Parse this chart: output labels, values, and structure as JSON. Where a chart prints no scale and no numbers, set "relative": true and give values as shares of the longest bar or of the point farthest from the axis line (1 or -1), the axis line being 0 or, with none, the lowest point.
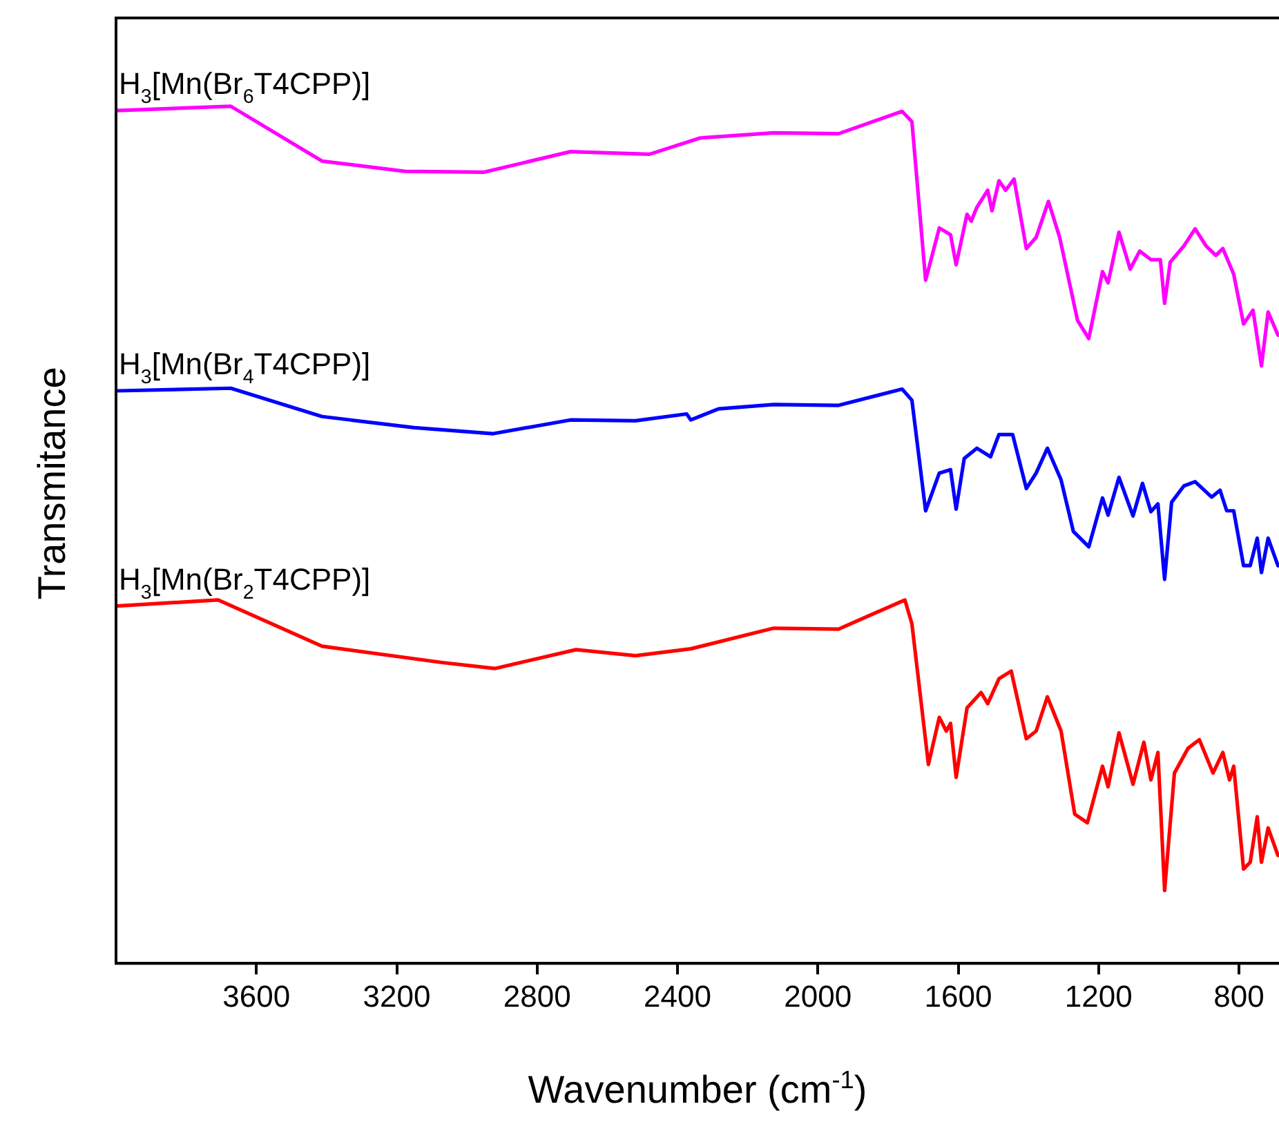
{
  "chart_data": {
    "type": "line",
    "xlabel": "Wavenumber (cm$^{-1}$)",
    "ylabel": "Transmitance",
    "relative": true,
    "legend": false,
    "grid": false,
    "marker": "none",
    "line_style": "solid",
    "xlim": [
      4000,
      686
    ],
    "xticks": [
      3600,
      3200,
      2800,
      2400,
      2000,
      1600,
      1200,
      800
    ],
    "series": [
      {
        "name": "H$_{3}$[Mn(Br$_{6}$T4CPP)]",
        "color": "#ff00ff",
        "x": [
          3996,
          3673,
          3413,
          3177,
          2953,
          2705,
          2480,
          2335,
          2126,
          1941,
          1760,
          1732,
          1693,
          1654,
          1622,
          1606,
          1575,
          1563,
          1547,
          1516,
          1504,
          1484,
          1465,
          1441,
          1406,
          1378,
          1343,
          1311,
          1260,
          1228,
          1189,
          1173,
          1142,
          1110,
          1083,
          1051,
          1024,
          1012,
          996,
          957,
          925,
          894,
          866,
          846,
          815,
          787,
          760,
          736,
          717,
          689
        ],
        "values": [
          0.995,
          1.0,
          0.936,
          0.924,
          0.923,
          0.947,
          0.944,
          0.963,
          0.969,
          0.968,
          0.994,
          0.982,
          0.797,
          0.858,
          0.85,
          0.815,
          0.874,
          0.866,
          0.882,
          0.902,
          0.878,
          0.913,
          0.902,
          0.915,
          0.834,
          0.847,
          0.889,
          0.847,
          0.75,
          0.729,
          0.807,
          0.794,
          0.853,
          0.81,
          0.831,
          0.821,
          0.821,
          0.77,
          0.818,
          0.837,
          0.857,
          0.837,
          0.826,
          0.834,
          0.804,
          0.746,
          0.762,
          0.697,
          0.76,
          0.733
        ]
      },
      {
        "name": "H$_{3}$[Mn(Br$_{4}$T4CPP)]",
        "color": "#0000ff",
        "x": [
          3996,
          3673,
          3413,
          3150,
          2925,
          2705,
          2520,
          2374,
          2362,
          2283,
          2126,
          1941,
          1760,
          1732,
          1693,
          1654,
          1622,
          1606,
          1583,
          1547,
          1508,
          1484,
          1445,
          1406,
          1378,
          1346,
          1307,
          1272,
          1228,
          1189,
          1173,
          1142,
          1102,
          1075,
          1051,
          1031,
          1012,
          992,
          957,
          925,
          878,
          854,
          835,
          815,
          787,
          768,
          748,
          736,
          717,
          689
        ],
        "values": [
          0.668,
          0.671,
          0.638,
          0.625,
          0.618,
          0.634,
          0.633,
          0.641,
          0.634,
          0.647,
          0.652,
          0.651,
          0.67,
          0.657,
          0.528,
          0.572,
          0.576,
          0.53,
          0.589,
          0.601,
          0.591,
          0.617,
          0.617,
          0.554,
          0.572,
          0.601,
          0.564,
          0.504,
          0.486,
          0.543,
          0.523,
          0.567,
          0.522,
          0.56,
          0.527,
          0.536,
          0.448,
          0.538,
          0.557,
          0.562,
          0.544,
          0.552,
          0.528,
          0.528,
          0.464,
          0.464,
          0.496,
          0.456,
          0.496,
          0.464
        ]
      },
      {
        "name": "H$_{3}$[Mn(Br$_{2}$T4CPP)]",
        "color": "#ff0000",
        "x": [
          3996,
          3709,
          3413,
          3071,
          2921,
          2689,
          2520,
          2362,
          2126,
          1941,
          1752,
          1732,
          1685,
          1654,
          1634,
          1622,
          1606,
          1575,
          1535,
          1516,
          1484,
          1449,
          1406,
          1378,
          1346,
          1307,
          1268,
          1232,
          1189,
          1173,
          1142,
          1102,
          1071,
          1051,
          1031,
          1012,
          984,
          945,
          913,
          874,
          846,
          827,
          815,
          787,
          768,
          748,
          736,
          717,
          689
        ],
        "values": [
          0.417,
          0.424,
          0.37,
          0.351,
          0.344,
          0.366,
          0.359,
          0.367,
          0.391,
          0.39,
          0.424,
          0.396,
          0.232,
          0.287,
          0.271,
          0.28,
          0.217,
          0.298,
          0.316,
          0.303,
          0.332,
          0.341,
          0.262,
          0.271,
          0.311,
          0.271,
          0.174,
          0.164,
          0.23,
          0.206,
          0.269,
          0.209,
          0.258,
          0.214,
          0.246,
          0.085,
          0.222,
          0.251,
          0.261,
          0.222,
          0.246,
          0.214,
          0.23,
          0.11,
          0.118,
          0.171,
          0.118,
          0.158,
          0.126
        ]
      }
    ]
  }
}
